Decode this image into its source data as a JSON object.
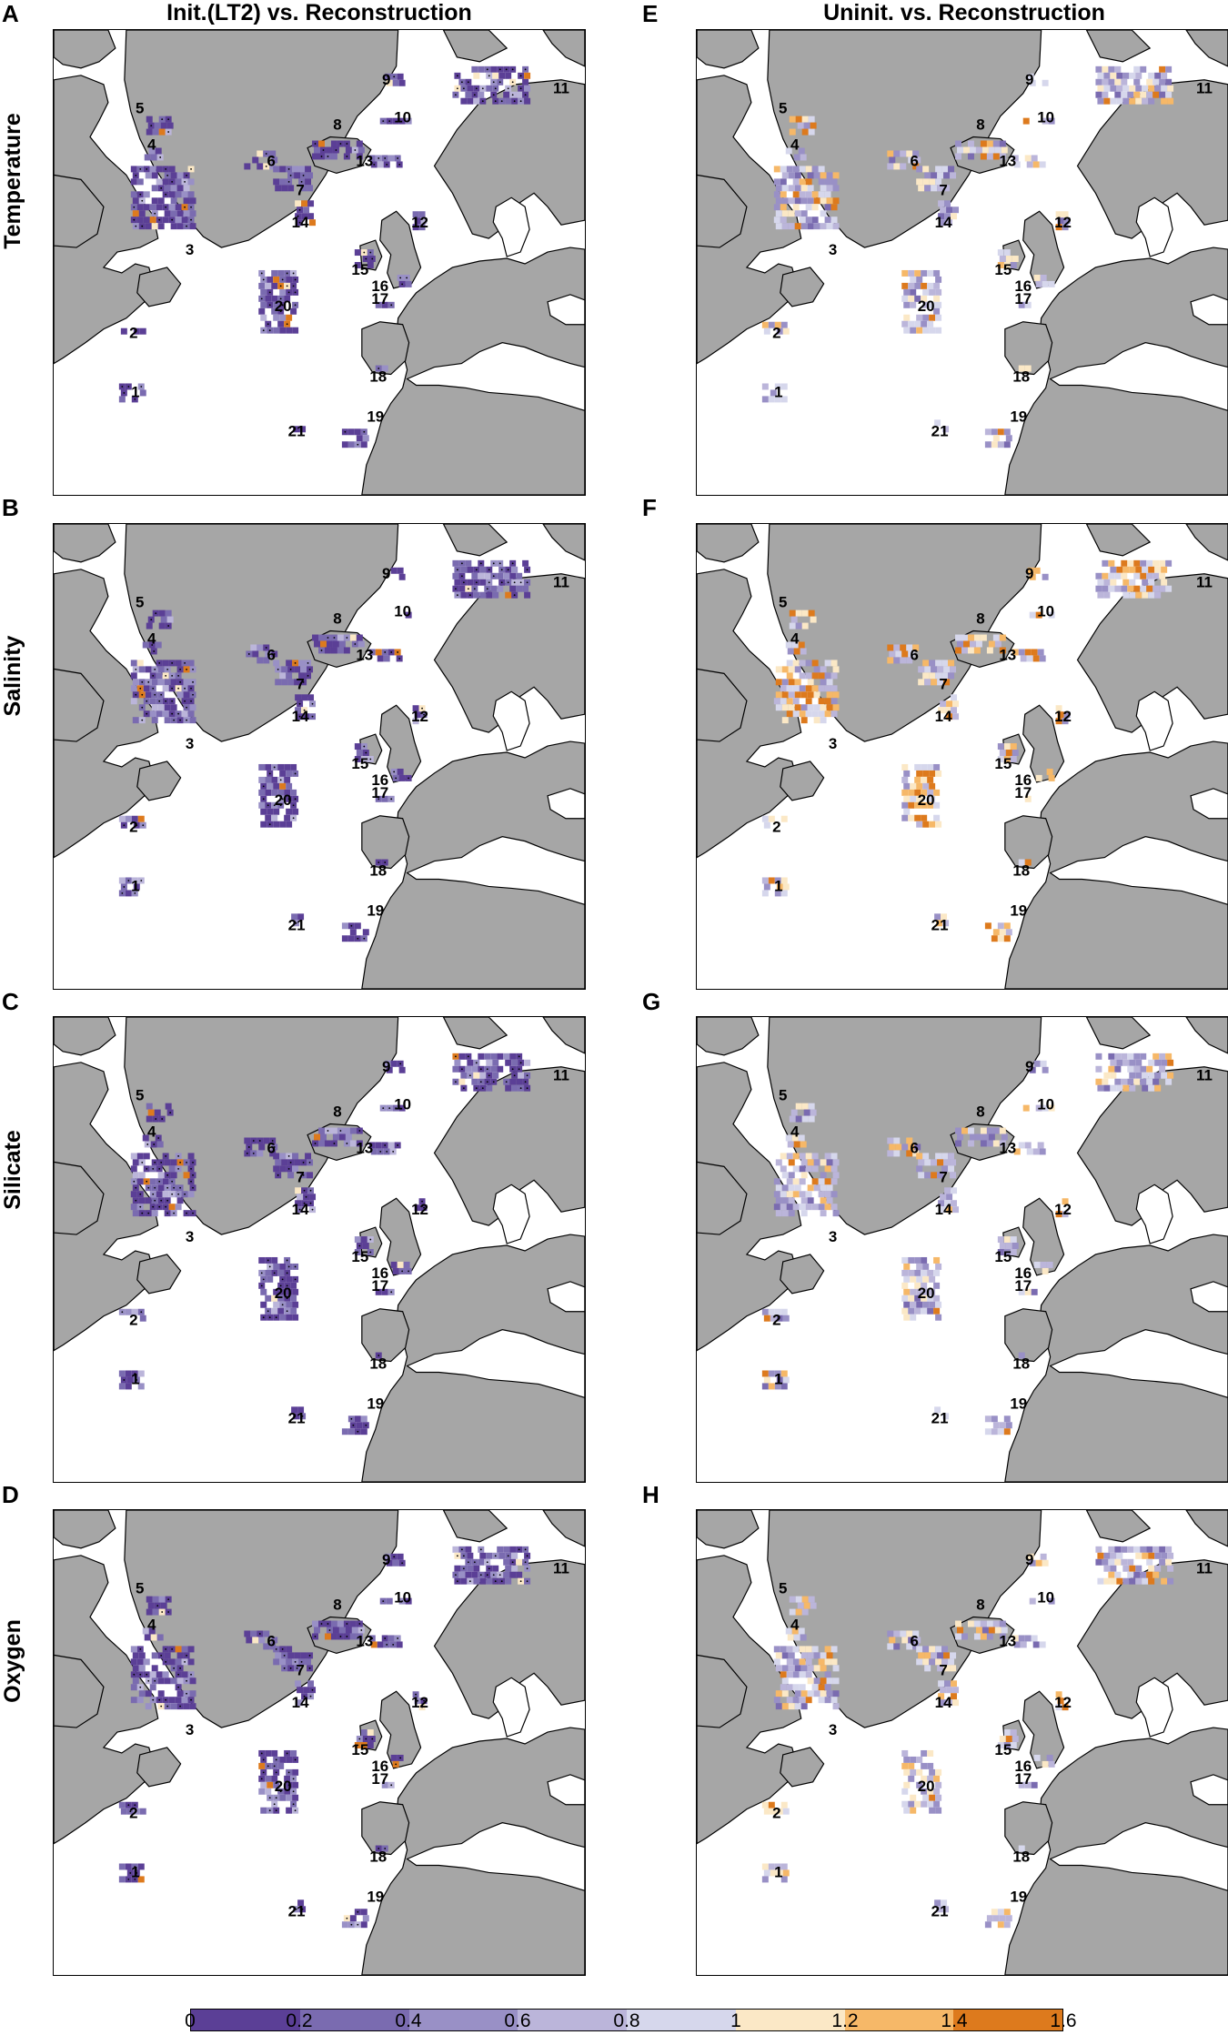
{
  "column_titles": [
    "Init.(LT2) vs. Reconstruction",
    "Uninit. vs. Reconstruction"
  ],
  "row_labels": [
    "Temperature",
    "Salinity",
    "Silicate",
    "Oxygen"
  ],
  "panel_letters": [
    "A",
    "B",
    "C",
    "D",
    "E",
    "F",
    "G",
    "H"
  ],
  "region_labels": [
    "1",
    "2",
    "3",
    "4",
    "5",
    "6",
    "7",
    "8",
    "9",
    "10",
    "11",
    "12",
    "13",
    "14",
    "15",
    "16",
    "17",
    "18",
    "19",
    "20",
    "21"
  ],
  "colorbar": {
    "ticks": [
      "0",
      "0.2",
      "0.4",
      "0.6",
      "0.8",
      "1",
      "1.2",
      "1.4",
      "1.6"
    ],
    "colors": [
      "#5b3f96",
      "#7a6bb0",
      "#9990c6",
      "#bbb5da",
      "#d6d7ec",
      "#fbe8c6",
      "#f6b868",
      "#dd7a1d"
    ]
  },
  "colors": {
    "land": "#a6a6a6",
    "ocean": "#ffffff"
  },
  "panel_shading": {
    "A": "low",
    "B": "low",
    "C": "low",
    "D": "low",
    "E": "mixed",
    "F": "high",
    "G": "mixed",
    "H": "mixed"
  }
}
